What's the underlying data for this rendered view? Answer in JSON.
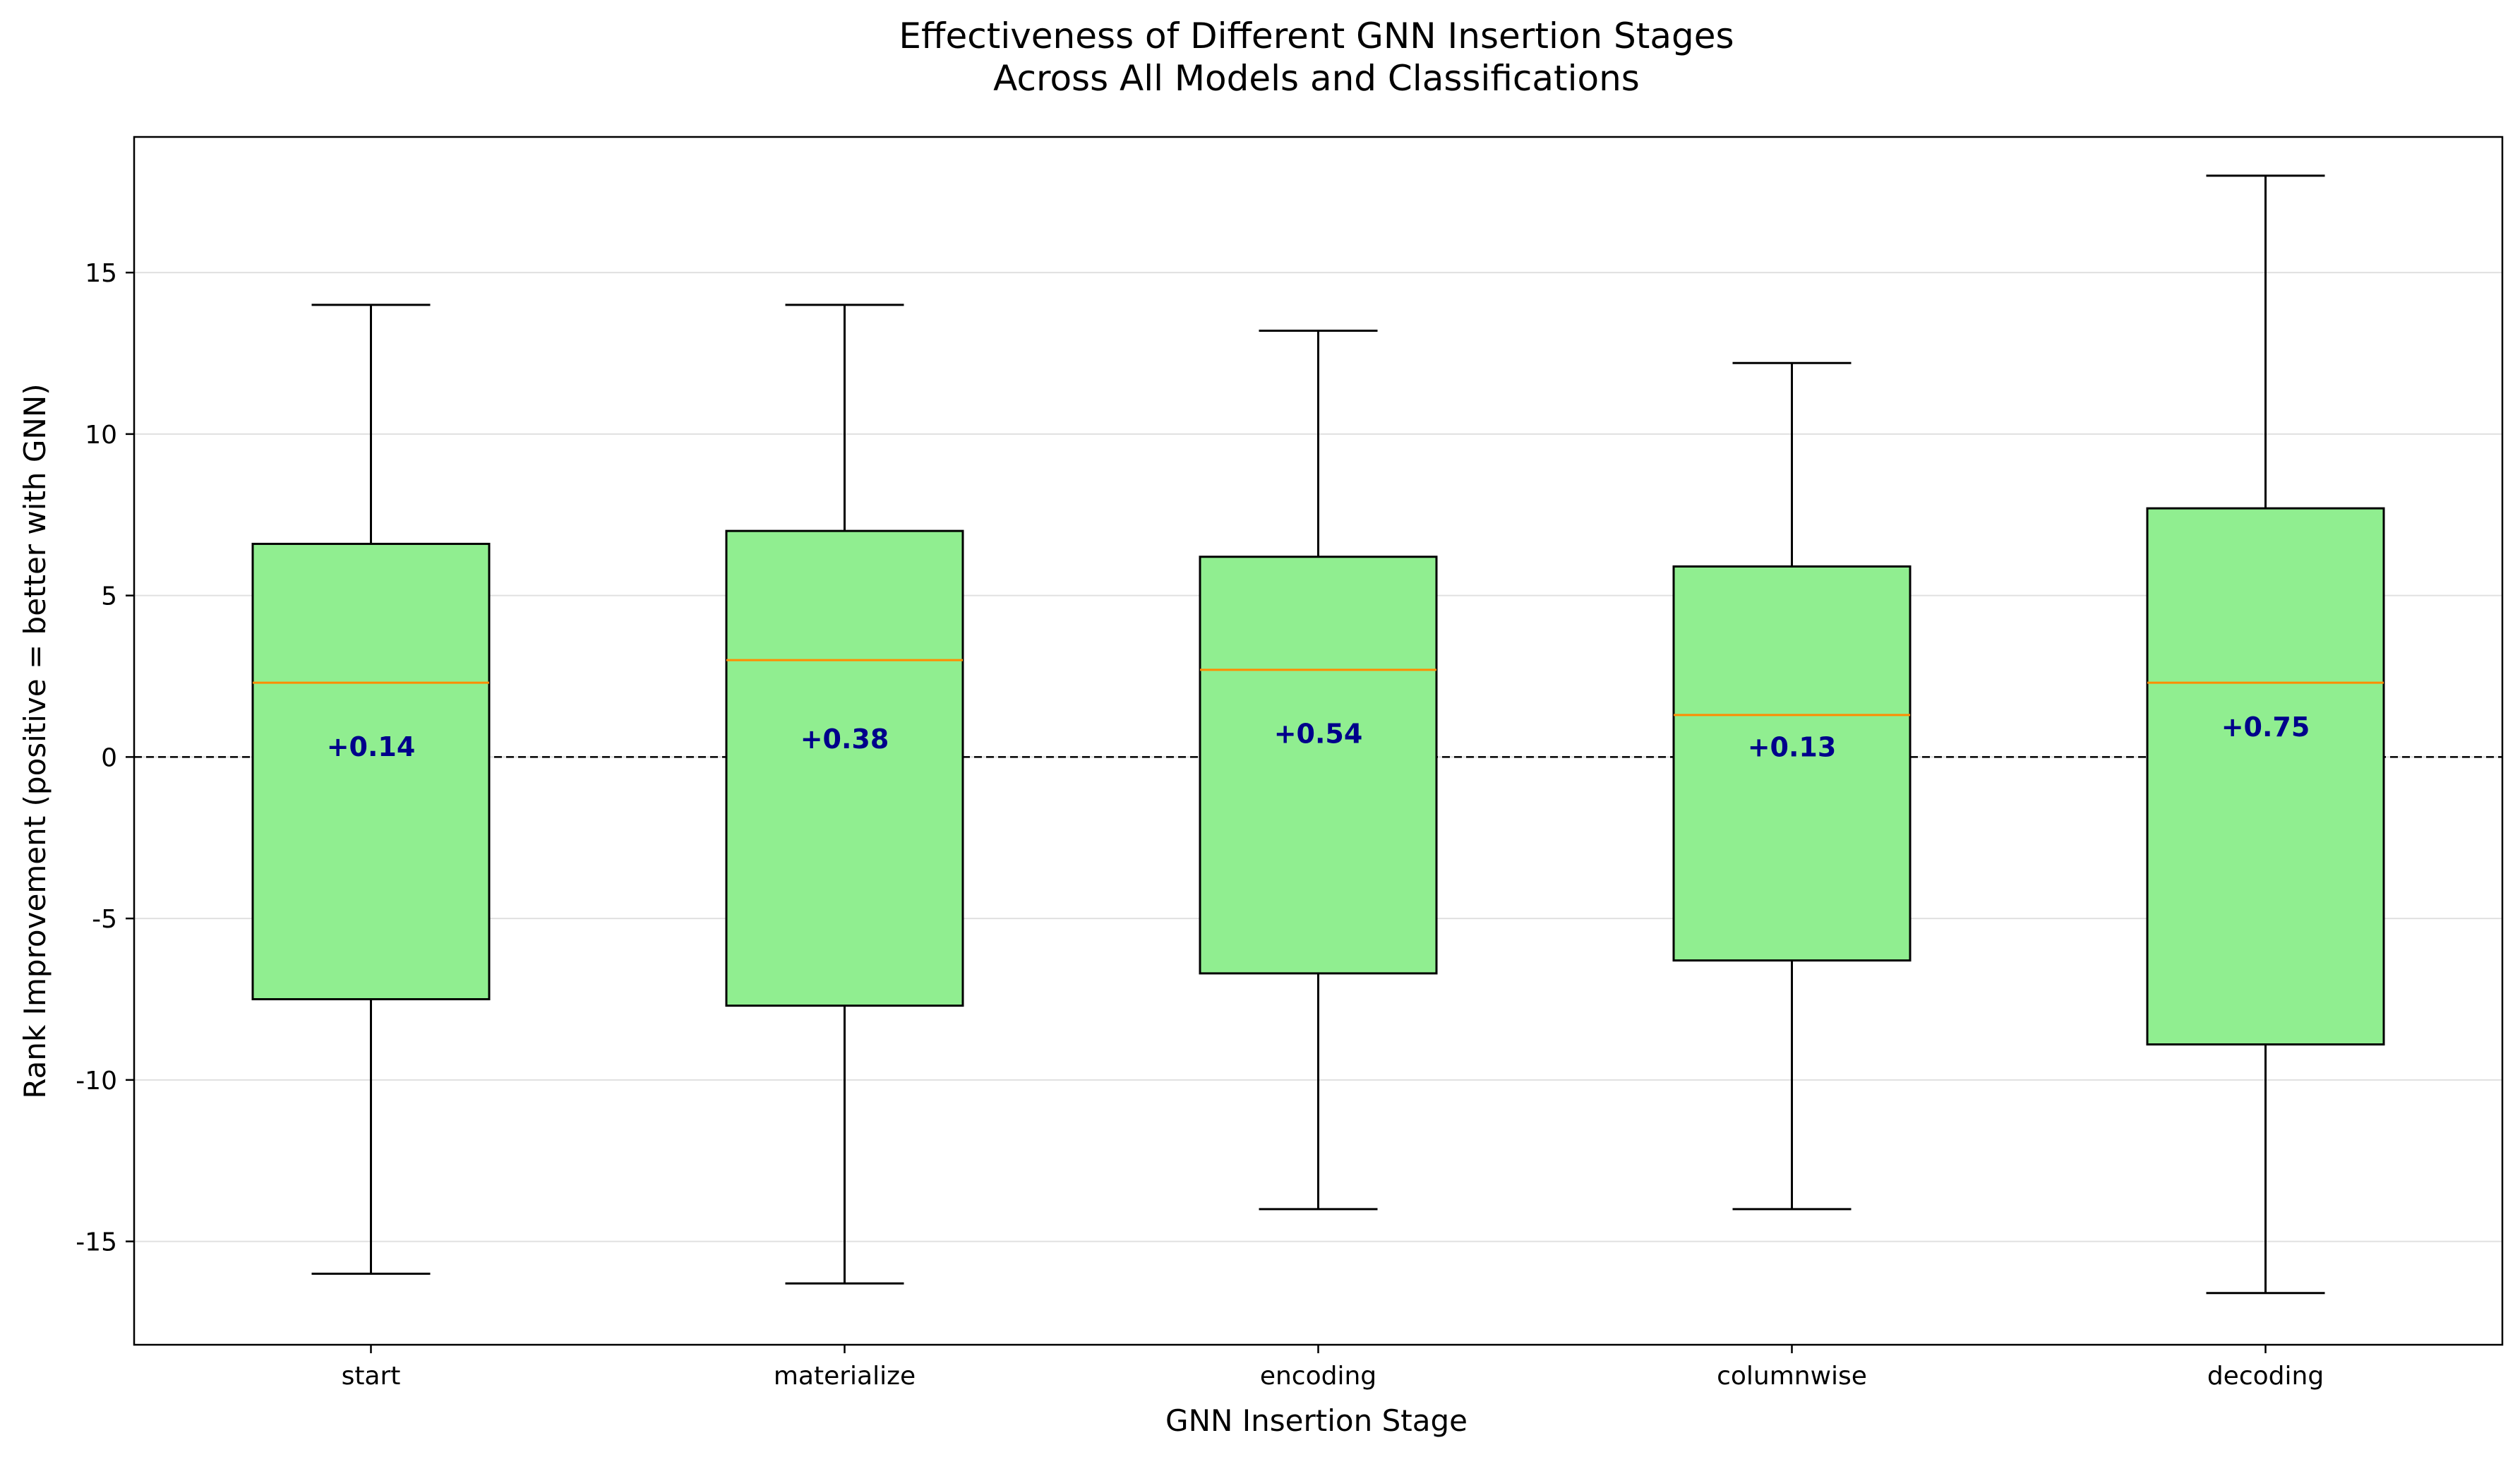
{
  "chart_data": {
    "type": "box",
    "title": "Effectiveness of Different GNN Insertion Stages",
    "subtitle": "Across All Models and Classifications",
    "xlabel": "GNN Insertion Stage",
    "ylabel": "Rank Improvement (positive = better with GNN)",
    "ylim": [
      -18.2,
      19.2
    ],
    "yticks": [
      -15,
      -10,
      -5,
      0,
      5,
      10,
      15
    ],
    "ytick_labels": [
      "-15",
      "-10",
      "-5",
      "0",
      "5",
      "10",
      "15"
    ],
    "grid": "y",
    "reference_line": 0,
    "categories": [
      "start",
      "materialize",
      "encoding",
      "columnwise",
      "decoding"
    ],
    "boxes": [
      {
        "category": "start",
        "whisker_low": -16.0,
        "q1": -7.5,
        "median": 2.3,
        "q3": 6.6,
        "whisker_high": 14.0,
        "mean_label": "+0.14",
        "mean": 0.14
      },
      {
        "category": "materialize",
        "whisker_low": -16.3,
        "q1": -7.7,
        "median": 3.0,
        "q3": 7.0,
        "whisker_high": 14.0,
        "mean_label": "+0.38",
        "mean": 0.38
      },
      {
        "category": "encoding",
        "whisker_low": -14.0,
        "q1": -6.7,
        "median": 2.7,
        "q3": 6.2,
        "whisker_high": 13.2,
        "mean_label": "+0.54",
        "mean": 0.54
      },
      {
        "category": "columnwise",
        "whisker_low": -14.0,
        "q1": -6.3,
        "median": 1.3,
        "q3": 5.9,
        "whisker_high": 12.2,
        "mean_label": "+0.13",
        "mean": 0.13
      },
      {
        "category": "decoding",
        "whisker_low": -16.6,
        "q1": -8.9,
        "median": 2.3,
        "q3": 7.7,
        "whisker_high": 18.0,
        "mean_label": "+0.75",
        "mean": 0.75
      }
    ],
    "colors": {
      "box_fill": "#90ee90",
      "box_edge": "#000000",
      "median": "#ff8c00",
      "mean_label": "#00008b",
      "grid": "#e0e0e0",
      "reference_line": "#000000"
    }
  }
}
